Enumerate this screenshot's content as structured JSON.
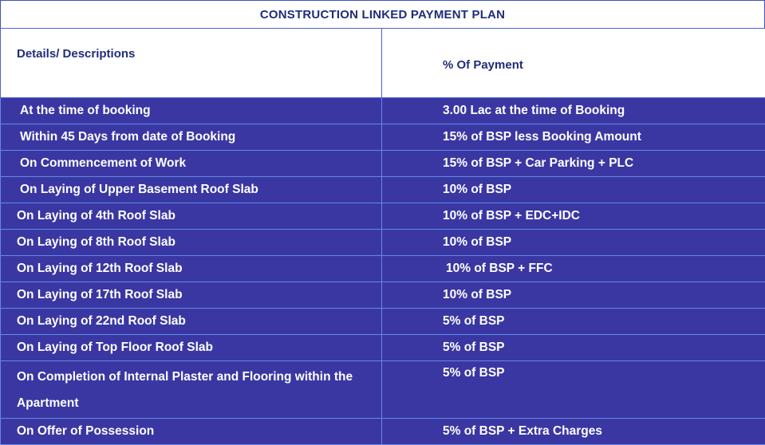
{
  "title": "CONSTRUCTION LINKED PAYMENT PLAN",
  "headers": {
    "col1": "Details/ Descriptions",
    "col2": "% Of Payment"
  },
  "rows": [
    {
      "stage": "At the time of booking",
      "payment": "3.00 Lac at the time of Booking"
    },
    {
      "stage": "Within 45 Days from date of Booking",
      "payment": "15% of BSP less Booking Amount"
    },
    {
      "stage": "On Commencement of Work",
      "payment": "15% of BSP + Car Parking + PLC"
    },
    {
      "stage": "On Laying of Upper Basement Roof Slab",
      "payment": "10% of BSP"
    },
    {
      "stage": "On Laying of 4th Roof Slab",
      "payment": "10% of BSP + EDC+IDC"
    },
    {
      "stage": "On Laying of 8th Roof Slab",
      "payment": "10% of BSP"
    },
    {
      "stage": "On Laying of 12th Roof Slab",
      "payment": "10% of BSP + FFC"
    },
    {
      "stage": "On Laying of 17th Roof Slab",
      "payment": "10% of BSP"
    },
    {
      "stage": "On Laying of 22nd Roof Slab",
      "payment": "5% of BSP"
    },
    {
      "stage": "On Laying of Top Floor Roof Slab",
      "payment": "5% of BSP"
    },
    {
      "stage": "On Completion of Internal Plaster and Flooring within the Apartment",
      "payment": "5% of BSP"
    },
    {
      "stage": "On Offer of Possession",
      "payment": "5% of BSP + Extra Charges"
    }
  ],
  "colors": {
    "row_background": "#3a37a3",
    "header_text": "#1f2d7a",
    "border": "#4a66d4"
  }
}
